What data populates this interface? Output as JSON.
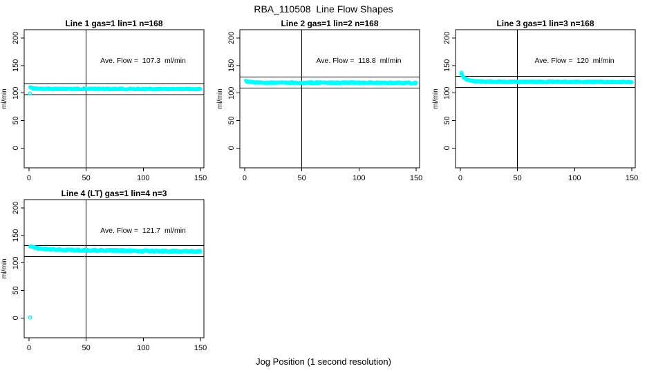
{
  "chart_data": {
    "type": "scatter",
    "title": "RBA_110508  Line Flow Shapes",
    "xlabel": "Jog Position (1 second resolution)",
    "ylabel": "ml/min",
    "x_ticks": [
      0,
      50,
      100,
      150
    ],
    "y_ticks": [
      0,
      50,
      100,
      150,
      200
    ],
    "xlim": [
      -4.2,
      153
    ],
    "ylim": [
      -36,
      215
    ],
    "grid": false,
    "legend": "none",
    "point_color": "#00ffff",
    "line_color": "#000000",
    "panels": [
      {
        "title": "Line 1 gas=1 lin=1 n=168",
        "annotation": "Ave. Flow =  107.3  ml/min",
        "ave_flow_ml_min": 107.3,
        "n": 168,
        "vline_x": 50,
        "hlines": [
          117.3,
          97.3
        ],
        "x_range": [
          1,
          150
        ],
        "profile": [
          [
            1,
            110
          ],
          [
            3,
            109
          ],
          [
            6,
            108.2
          ],
          [
            12,
            107.6
          ],
          [
            60,
            107.4
          ],
          [
            150,
            107.2
          ]
        ],
        "outliers": [
          [
            1,
            99
          ]
        ],
        "jitter": 1.1
      },
      {
        "title": "Line 2 gas=1 lin=2 n=168",
        "annotation": "Ave. Flow =  118.8  ml/min",
        "ave_flow_ml_min": 118.8,
        "n": 168,
        "vline_x": 50,
        "hlines": [
          128.8,
          108.8
        ],
        "x_range": [
          1,
          150
        ],
        "profile": [
          [
            1,
            121.5
          ],
          [
            3,
            120.5
          ],
          [
            6,
            119.5
          ],
          [
            12,
            119
          ],
          [
            60,
            118.8
          ],
          [
            150,
            118.5
          ]
        ],
        "outliers": [],
        "jitter": 1.2
      },
      {
        "title": "Line 3 gas=1 lin=3 n=168",
        "annotation": "Ave. Flow =  120  ml/min",
        "ave_flow_ml_min": 120,
        "n": 168,
        "vline_x": 50,
        "hlines": [
          130,
          110
        ],
        "x_range": [
          1,
          150
        ],
        "profile": [
          [
            1,
            135
          ],
          [
            2,
            131
          ],
          [
            3,
            128
          ],
          [
            5,
            125
          ],
          [
            8,
            122.5
          ],
          [
            15,
            121
          ],
          [
            40,
            120.3
          ],
          [
            150,
            120
          ]
        ],
        "outliers": [
          [
            1,
            137
          ]
        ],
        "jitter": 1.1
      },
      {
        "title": "Line 4 (LT) gas=1 lin=4 n=3",
        "annotation": "Ave. Flow =  121.7  ml/min",
        "ave_flow_ml_min": 121.7,
        "n": 3,
        "vline_x": 50,
        "hlines": [
          131.7,
          111.7
        ],
        "x_range": [
          1,
          150
        ],
        "profile": [
          [
            1,
            130
          ],
          [
            3,
            128.5
          ],
          [
            6,
            127
          ],
          [
            12,
            125.5
          ],
          [
            25,
            124
          ],
          [
            50,
            123
          ],
          [
            90,
            122
          ],
          [
            150,
            120.8
          ]
        ],
        "outliers": [
          [
            1,
            1
          ]
        ],
        "jitter": 1.6
      }
    ]
  }
}
